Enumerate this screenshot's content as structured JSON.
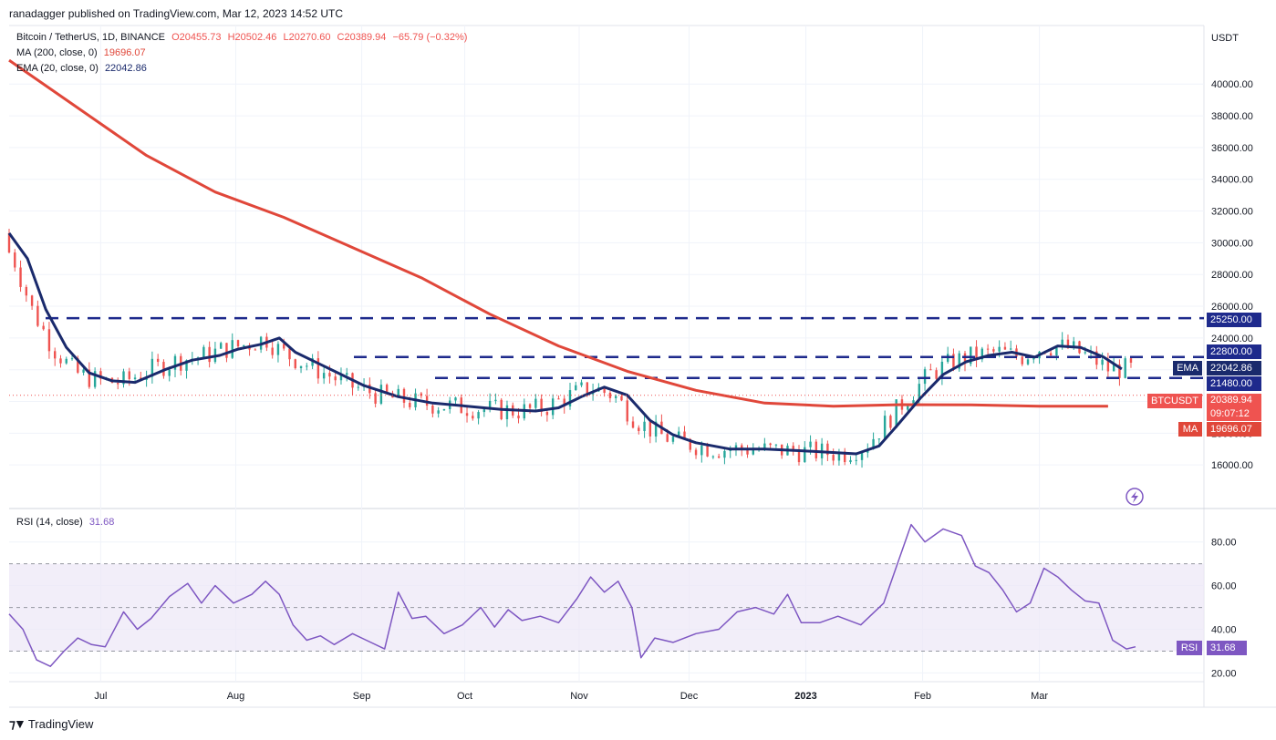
{
  "header": {
    "published_by": "ranadagger published on TradingView.com, Mar 12, 2023 14:52 UTC"
  },
  "symbol": {
    "name": "Bitcoin / TetherUS, 1D, BINANCE",
    "open": "O20455.73",
    "high": "H20502.46",
    "low": "L20270.60",
    "close": "C20389.94",
    "change": "−65.79 (−0.32%)"
  },
  "indicators": {
    "ma": {
      "label": "MA (200, close, 0)",
      "value": "19696.07"
    },
    "ema": {
      "label": "EMA (20, close, 0)",
      "value": "22042.86"
    },
    "rsi": {
      "label": "RSI (14, close)",
      "value": "31.68"
    }
  },
  "badges": {
    "r1": "25250.00",
    "r2": "22800.00",
    "ema_tag": "EMA",
    "ema_val": "22042.86",
    "r3": "21480.00",
    "sym_tag": "BTCUSDT",
    "price": "20389.94",
    "countdown": "09:07:12",
    "ma_tag": "MA",
    "ma_val": "19696.07",
    "rsi_tag": "RSI",
    "rsi_val": "31.68"
  },
  "axis": {
    "currency": "USDT"
  },
  "footer": {
    "brand": "TradingView"
  },
  "colors": {
    "candle_up": "#26a69a",
    "candle_down": "#ef5350",
    "ma": "#e0473a",
    "ema": "#1a2a6c",
    "rsi": "#7e57c2",
    "level": "#1e2a8c"
  },
  "chart_data": {
    "type": "candlestick",
    "price_axis": {
      "ticks": [
        16000,
        18000,
        20000,
        22000,
        24000,
        26000,
        28000,
        30000,
        32000,
        34000,
        36000,
        38000,
        40000
      ],
      "tick_labels": [
        "16000.00",
        "18000.00",
        "20000.00",
        "22000.00",
        "24000.00",
        "26000.00",
        "28000.00",
        "30000.00",
        "32000.00",
        "34000.00",
        "36000.00",
        "38000.00",
        "40000.00"
      ],
      "range": [
        14000,
        43000
      ]
    },
    "time_axis": {
      "labels": [
        "Jul",
        "Aug",
        "Sep",
        "Oct",
        "Nov",
        "Dec",
        "2023",
        "Feb",
        "Mar"
      ]
    },
    "horizontal_levels": [
      25250,
      22800,
      21480
    ],
    "series": [
      {
        "name": "MA (200, close, 0)",
        "points": [
          [
            0,
            41500
          ],
          [
            30,
            38500
          ],
          [
            60,
            35500
          ],
          [
            90,
            33200
          ],
          [
            120,
            31600
          ],
          [
            150,
            29700
          ],
          [
            180,
            27800
          ],
          [
            210,
            25500
          ],
          [
            240,
            23500
          ],
          [
            270,
            21900
          ],
          [
            300,
            20700
          ],
          [
            330,
            19900
          ],
          [
            360,
            19700
          ],
          [
            390,
            19800
          ],
          [
            420,
            19780
          ],
          [
            450,
            19700
          ],
          [
            480,
            19696
          ]
        ]
      },
      {
        "name": "EMA (20, close, 0)",
        "points": [
          [
            0,
            30600
          ],
          [
            8,
            29000
          ],
          [
            16,
            25800
          ],
          [
            25,
            23400
          ],
          [
            35,
            21800
          ],
          [
            45,
            21300
          ],
          [
            55,
            21200
          ],
          [
            68,
            22000
          ],
          [
            80,
            22600
          ],
          [
            92,
            22900
          ],
          [
            100,
            23300
          ],
          [
            110,
            23600
          ],
          [
            118,
            24000
          ],
          [
            125,
            23100
          ],
          [
            135,
            22400
          ],
          [
            145,
            21700
          ],
          [
            155,
            21000
          ],
          [
            170,
            20300
          ],
          [
            185,
            19900
          ],
          [
            200,
            19700
          ],
          [
            215,
            19500
          ],
          [
            230,
            19400
          ],
          [
            240,
            19600
          ],
          [
            250,
            20300
          ],
          [
            260,
            20900
          ],
          [
            270,
            20400
          ],
          [
            280,
            18800
          ],
          [
            290,
            17900
          ],
          [
            300,
            17400
          ],
          [
            315,
            17000
          ],
          [
            330,
            17000
          ],
          [
            345,
            16900
          ],
          [
            358,
            16800
          ],
          [
            370,
            16700
          ],
          [
            380,
            17200
          ],
          [
            388,
            18500
          ],
          [
            398,
            20200
          ],
          [
            408,
            21700
          ],
          [
            418,
            22500
          ],
          [
            428,
            22900
          ],
          [
            438,
            23100
          ],
          [
            448,
            22800
          ],
          [
            458,
            23500
          ],
          [
            468,
            23400
          ],
          [
            478,
            22800
          ],
          [
            486,
            22043
          ]
        ]
      },
      {
        "name": "RSI (14, close)",
        "points": [
          [
            0,
            47
          ],
          [
            6,
            40
          ],
          [
            12,
            26
          ],
          [
            18,
            23
          ],
          [
            24,
            30
          ],
          [
            30,
            36
          ],
          [
            36,
            33
          ],
          [
            42,
            32
          ],
          [
            50,
            48
          ],
          [
            56,
            40
          ],
          [
            62,
            45
          ],
          [
            70,
            55
          ],
          [
            78,
            61
          ],
          [
            84,
            52
          ],
          [
            90,
            60
          ],
          [
            98,
            52
          ],
          [
            106,
            56
          ],
          [
            112,
            62
          ],
          [
            118,
            56
          ],
          [
            124,
            42
          ],
          [
            130,
            35
          ],
          [
            136,
            37
          ],
          [
            142,
            33
          ],
          [
            150,
            38
          ],
          [
            156,
            35
          ],
          [
            164,
            31
          ],
          [
            170,
            57
          ],
          [
            176,
            45
          ],
          [
            182,
            46
          ],
          [
            190,
            38
          ],
          [
            198,
            42
          ],
          [
            206,
            50
          ],
          [
            212,
            41
          ],
          [
            218,
            49
          ],
          [
            224,
            44
          ],
          [
            232,
            46
          ],
          [
            240,
            43
          ],
          [
            248,
            54
          ],
          [
            254,
            64
          ],
          [
            260,
            57
          ],
          [
            266,
            62
          ],
          [
            272,
            50
          ],
          [
            276,
            27
          ],
          [
            282,
            36
          ],
          [
            290,
            34
          ],
          [
            300,
            38
          ],
          [
            310,
            40
          ],
          [
            318,
            48
          ],
          [
            326,
            50
          ],
          [
            334,
            47
          ],
          [
            340,
            56
          ],
          [
            346,
            43
          ],
          [
            354,
            43
          ],
          [
            362,
            46
          ],
          [
            372,
            42
          ],
          [
            382,
            52
          ],
          [
            388,
            70
          ],
          [
            394,
            88
          ],
          [
            400,
            80
          ],
          [
            408,
            86
          ],
          [
            416,
            83
          ],
          [
            422,
            69
          ],
          [
            428,
            66
          ],
          [
            434,
            58
          ],
          [
            440,
            48
          ],
          [
            446,
            52
          ],
          [
            452,
            68
          ],
          [
            458,
            64
          ],
          [
            464,
            58
          ],
          [
            470,
            53
          ],
          [
            476,
            52
          ],
          [
            482,
            35
          ],
          [
            488,
            31
          ],
          [
            492,
            32
          ]
        ]
      }
    ],
    "rsi_axis": {
      "ticks": [
        20,
        40,
        60,
        80
      ],
      "tick_labels": [
        "20.00",
        "40.00",
        "60.00",
        "80.00"
      ],
      "bands": [
        30,
        50,
        70
      ],
      "range": [
        16,
        92
      ]
    }
  }
}
